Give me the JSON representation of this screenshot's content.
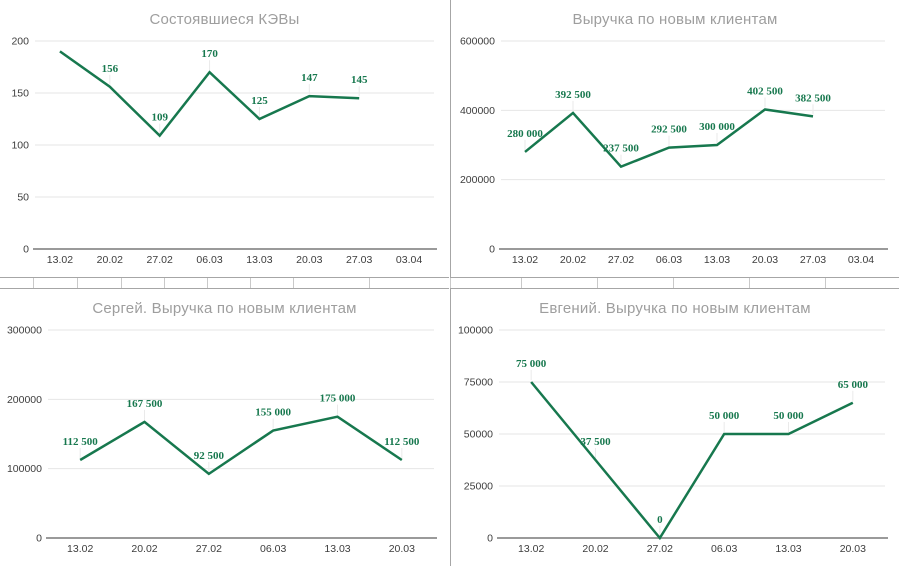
{
  "colors": {
    "series_green": "#17784e",
    "data_label_green": "#17784e",
    "title_gray": "#9e9e9e",
    "axis_text": "#3d3d3d",
    "gridline": "#e6e6e6",
    "baseline": "#9a9a9a",
    "panel_border": "#a6a6a6"
  },
  "chart_data": [
    {
      "type": "line",
      "title": "Состоявшиеся КЭВы",
      "x_ticks": [
        "13.02",
        "20.02",
        "27.02",
        "06.03",
        "13.03",
        "20.03",
        "27.03",
        "03.04"
      ],
      "values": [
        190,
        156,
        109,
        170,
        125,
        147,
        145
      ],
      "point_labels": [
        "",
        "156",
        "109",
        "170",
        "125",
        "147",
        "145"
      ],
      "y_tick_labels": [
        "0",
        "50",
        "100",
        "150",
        "200"
      ],
      "y_tick_values": [
        0,
        50,
        100,
        150,
        200
      ],
      "ylim": [
        0,
        200
      ],
      "grid": true,
      "legend": "none"
    },
    {
      "type": "line",
      "title": "Выручка по новым клиентам",
      "x_ticks": [
        "13.02",
        "20.02",
        "27.02",
        "06.03",
        "13.03",
        "20.03",
        "27.03",
        "03.04"
      ],
      "values": [
        280000,
        392500,
        237500,
        292500,
        300000,
        402500,
        382500
      ],
      "point_labels": [
        "280 000",
        "392 500",
        "237 500",
        "292 500",
        "300 000",
        "402 500",
        "382 500"
      ],
      "y_tick_labels": [
        "0",
        "200000",
        "400000",
        "600000"
      ],
      "y_tick_values": [
        0,
        200000,
        400000,
        600000
      ],
      "ylim": [
        0,
        600000
      ],
      "grid": true,
      "legend": "none"
    },
    {
      "type": "line",
      "title": "Сергей. Выручка по новым клиентам",
      "x_ticks": [
        "13.02",
        "20.02",
        "27.02",
        "06.03",
        "13.03",
        "20.03"
      ],
      "values": [
        112500,
        167500,
        92500,
        155000,
        175000,
        112500
      ],
      "point_labels": [
        "112 500",
        "167 500",
        "92 500",
        "155 000",
        "175 000",
        "112 500"
      ],
      "y_tick_labels": [
        "0",
        "100000",
        "200000",
        "300000"
      ],
      "y_tick_values": [
        0,
        100000,
        200000,
        300000
      ],
      "ylim": [
        0,
        300000
      ],
      "grid": true,
      "legend": "none"
    },
    {
      "type": "line",
      "title": "Евгений. Выручка по новым клиентам",
      "x_ticks": [
        "13.02",
        "20.02",
        "27.02",
        "06.03",
        "13.03",
        "20.03"
      ],
      "values": [
        75000,
        37500,
        0,
        50000,
        50000,
        65000
      ],
      "point_labels": [
        "75 000",
        "37 500",
        "0",
        "50 000",
        "50 000",
        "65 000"
      ],
      "y_tick_labels": [
        "0",
        "25000",
        "50000",
        "75000",
        "100000"
      ],
      "y_tick_values": [
        0,
        25000,
        50000,
        75000,
        100000
      ],
      "ylim": [
        0,
        100000
      ],
      "grid": true,
      "legend": "none"
    }
  ]
}
